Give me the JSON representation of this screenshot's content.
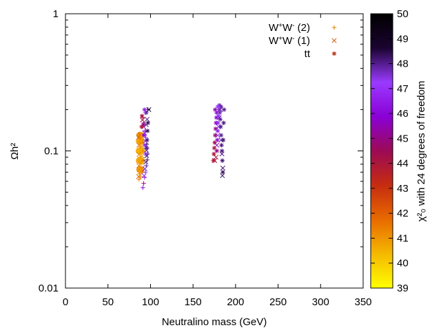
{
  "chart_data": {
    "type": "scatter",
    "title": "",
    "xlabel": "Neutralino mass (GeV)",
    "ylabel": "Ωh²",
    "colorbar_label": "χ²₀ with 24 degrees of freedom",
    "xlim": [
      0,
      350
    ],
    "ylim": [
      0.01,
      1
    ],
    "yscale": "log",
    "x_ticks": [
      0,
      50,
      100,
      150,
      200,
      250,
      300,
      350
    ],
    "y_ticks": [
      0.01,
      0.1,
      1
    ],
    "y_tick_labels": [
      "0.01",
      "0.1",
      "1"
    ],
    "colorbar_range": [
      39,
      50
    ],
    "colorbar_ticks": [
      39,
      40,
      41,
      42,
      43,
      44,
      45,
      46,
      47,
      48,
      49,
      50
    ],
    "colormap": [
      "#ffff00",
      "#f5b800",
      "#e86a00",
      "#c62c10",
      "#9c0a55",
      "#8a00d6",
      "#9a3aff",
      "#1a0430",
      "#000000"
    ],
    "legend_position": "top-right",
    "legend": [
      {
        "label_main": "W",
        "label_sup1": "+",
        "label_mid": "W",
        "label_sup2": "-",
        "label_tail": " (2)",
        "marker": "+",
        "color": "#e08000"
      },
      {
        "label_main": "W",
        "label_sup1": "+",
        "label_mid": "W",
        "label_sup2": "-",
        "label_tail": " (1)",
        "marker": "x",
        "color": "#cc5500"
      },
      {
        "label_main": "tt",
        "label_sup1": "",
        "label_mid": "",
        "label_sup2": "",
        "label_tail": "",
        "marker": "*",
        "color": "#b03010"
      }
    ],
    "series": [
      {
        "name": "W+W- (2)",
        "marker": "+",
        "points": [
          {
            "x": 86.5,
            "y": 0.062,
            "c": 41.5
          },
          {
            "x": 87.0,
            "y": 0.068,
            "c": 41.2
          },
          {
            "x": 87.2,
            "y": 0.075,
            "c": 41.0
          },
          {
            "x": 87.4,
            "y": 0.082,
            "c": 40.9
          },
          {
            "x": 87.5,
            "y": 0.09,
            "c": 40.8
          },
          {
            "x": 87.6,
            "y": 0.098,
            "c": 40.8
          },
          {
            "x": 87.5,
            "y": 0.107,
            "c": 40.9
          },
          {
            "x": 87.4,
            "y": 0.116,
            "c": 41.0
          },
          {
            "x": 87.2,
            "y": 0.125,
            "c": 41.3
          },
          {
            "x": 87.0,
            "y": 0.133,
            "c": 41.6
          },
          {
            "x": 88.5,
            "y": 0.065,
            "c": 41.2
          },
          {
            "x": 88.8,
            "y": 0.072,
            "c": 40.9
          },
          {
            "x": 89.0,
            "y": 0.08,
            "c": 40.6
          },
          {
            "x": 89.1,
            "y": 0.088,
            "c": 40.5
          },
          {
            "x": 89.2,
            "y": 0.096,
            "c": 40.4
          },
          {
            "x": 89.1,
            "y": 0.104,
            "c": 40.5
          },
          {
            "x": 89.0,
            "y": 0.113,
            "c": 40.7
          },
          {
            "x": 88.8,
            "y": 0.122,
            "c": 41.0
          },
          {
            "x": 90.5,
            "y": 0.07,
            "c": 41.8
          },
          {
            "x": 90.8,
            "y": 0.085,
            "c": 41.4
          },
          {
            "x": 90.8,
            "y": 0.1,
            "c": 41.3
          },
          {
            "x": 90.6,
            "y": 0.115,
            "c": 41.6
          },
          {
            "x": 92.0,
            "y": 0.058,
            "c": 45.0
          },
          {
            "x": 93.0,
            "y": 0.064,
            "c": 46.5
          },
          {
            "x": 94.0,
            "y": 0.07,
            "c": 47.5
          },
          {
            "x": 95.0,
            "y": 0.078,
            "c": 48.0
          },
          {
            "x": 96.0,
            "y": 0.086,
            "c": 48.3
          },
          {
            "x": 96.5,
            "y": 0.095,
            "c": 48.2
          },
          {
            "x": 96.0,
            "y": 0.105,
            "c": 47.8
          },
          {
            "x": 95.5,
            "y": 0.112,
            "c": 49.5
          },
          {
            "x": 94.5,
            "y": 0.125,
            "c": 47.0
          },
          {
            "x": 93.5,
            "y": 0.14,
            "c": 45.5
          },
          {
            "x": 92.0,
            "y": 0.16,
            "c": 44.5
          },
          {
            "x": 91.0,
            "y": 0.175,
            "c": 44.0
          },
          {
            "x": 94.0,
            "y": 0.19,
            "c": 47.5
          },
          {
            "x": 97.0,
            "y": 0.2,
            "c": 48.5
          },
          {
            "x": 91.0,
            "y": 0.054,
            "c": 46.0
          }
        ]
      },
      {
        "name": "W+W- (1)",
        "marker": "x",
        "points": [
          {
            "x": 86.0,
            "y": 0.065,
            "c": 41.8
          },
          {
            "x": 86.3,
            "y": 0.078,
            "c": 41.5
          },
          {
            "x": 86.4,
            "y": 0.094,
            "c": 41.4
          },
          {
            "x": 86.3,
            "y": 0.11,
            "c": 41.6
          },
          {
            "x": 86.0,
            "y": 0.126,
            "c": 42.0
          },
          {
            "x": 88.0,
            "y": 0.07,
            "c": 40.9
          },
          {
            "x": 88.3,
            "y": 0.085,
            "c": 40.6
          },
          {
            "x": 88.4,
            "y": 0.101,
            "c": 40.5
          },
          {
            "x": 88.2,
            "y": 0.118,
            "c": 40.8
          },
          {
            "x": 89.8,
            "y": 0.075,
            "c": 41.1
          },
          {
            "x": 90.0,
            "y": 0.092,
            "c": 40.9
          },
          {
            "x": 89.8,
            "y": 0.108,
            "c": 41.1
          },
          {
            "x": 92.5,
            "y": 0.066,
            "c": 46.8
          },
          {
            "x": 93.5,
            "y": 0.074,
            "c": 47.6
          },
          {
            "x": 94.5,
            "y": 0.083,
            "c": 48.2
          },
          {
            "x": 95.5,
            "y": 0.092,
            "c": 48.4
          },
          {
            "x": 95.2,
            "y": 0.101,
            "c": 48.0
          },
          {
            "x": 94.0,
            "y": 0.118,
            "c": 47.2
          },
          {
            "x": 93.0,
            "y": 0.135,
            "c": 46.0
          },
          {
            "x": 92.0,
            "y": 0.15,
            "c": 45.0
          },
          {
            "x": 90.5,
            "y": 0.168,
            "c": 44.2
          },
          {
            "x": 96.0,
            "y": 0.17,
            "c": 48.0
          },
          {
            "x": 98.0,
            "y": 0.2,
            "c": 48.6
          },
          {
            "x": 95.0,
            "y": 0.155,
            "c": 47.8
          },
          {
            "x": 177.0,
            "y": 0.09,
            "c": 44.0
          },
          {
            "x": 178.0,
            "y": 0.11,
            "c": 45.5
          },
          {
            "x": 179.0,
            "y": 0.13,
            "c": 47.0
          },
          {
            "x": 180.0,
            "y": 0.15,
            "c": 47.5
          },
          {
            "x": 181.0,
            "y": 0.175,
            "c": 47.8
          },
          {
            "x": 182.0,
            "y": 0.2,
            "c": 48.0
          },
          {
            "x": 183.0,
            "y": 0.12,
            "c": 47.8
          },
          {
            "x": 184.0,
            "y": 0.095,
            "c": 48.0
          },
          {
            "x": 185.0,
            "y": 0.075,
            "c": 48.2
          },
          {
            "x": 184.5,
            "y": 0.066,
            "c": 48.3
          },
          {
            "x": 175.5,
            "y": 0.085,
            "c": 44.2
          }
        ]
      },
      {
        "name": "tt",
        "marker": "*",
        "points": [
          {
            "x": 90.0,
            "y": 0.18,
            "c": 44.2
          },
          {
            "x": 91.5,
            "y": 0.155,
            "c": 45.2
          },
          {
            "x": 92.5,
            "y": 0.13,
            "c": 46.0
          },
          {
            "x": 93.5,
            "y": 0.11,
            "c": 46.8
          },
          {
            "x": 94.5,
            "y": 0.095,
            "c": 47.4
          },
          {
            "x": 95.5,
            "y": 0.105,
            "c": 47.9
          },
          {
            "x": 96.0,
            "y": 0.12,
            "c": 48.1
          },
          {
            "x": 96.5,
            "y": 0.14,
            "c": 48.3
          },
          {
            "x": 97.0,
            "y": 0.16,
            "c": 48.4
          },
          {
            "x": 95.0,
            "y": 0.19,
            "c": 47.8
          },
          {
            "x": 93.0,
            "y": 0.2,
            "c": 46.5
          },
          {
            "x": 89.5,
            "y": 0.15,
            "c": 43.8
          },
          {
            "x": 174.0,
            "y": 0.085,
            "c": 43.8
          },
          {
            "x": 174.5,
            "y": 0.095,
            "c": 44.0
          },
          {
            "x": 175.0,
            "y": 0.105,
            "c": 44.2
          },
          {
            "x": 175.5,
            "y": 0.115,
            "c": 44.5
          },
          {
            "x": 176.0,
            "y": 0.13,
            "c": 44.8
          },
          {
            "x": 176.5,
            "y": 0.145,
            "c": 45.2
          },
          {
            "x": 177.0,
            "y": 0.16,
            "c": 45.6
          },
          {
            "x": 177.5,
            "y": 0.175,
            "c": 45.9
          },
          {
            "x": 177.8,
            "y": 0.19,
            "c": 46.2
          },
          {
            "x": 178.0,
            "y": 0.1,
            "c": 45.0
          },
          {
            "x": 178.5,
            "y": 0.12,
            "c": 45.8
          },
          {
            "x": 179.0,
            "y": 0.14,
            "c": 46.5
          },
          {
            "x": 179.5,
            "y": 0.16,
            "c": 47.0
          },
          {
            "x": 180.0,
            "y": 0.18,
            "c": 47.3
          },
          {
            "x": 180.5,
            "y": 0.2,
            "c": 47.5
          },
          {
            "x": 181.0,
            "y": 0.215,
            "c": 47.7
          },
          {
            "x": 181.5,
            "y": 0.19,
            "c": 47.8
          },
          {
            "x": 182.0,
            "y": 0.17,
            "c": 47.9
          },
          {
            "x": 182.5,
            "y": 0.15,
            "c": 48.0
          },
          {
            "x": 183.0,
            "y": 0.13,
            "c": 48.0
          },
          {
            "x": 183.5,
            "y": 0.11,
            "c": 48.1
          },
          {
            "x": 184.0,
            "y": 0.1,
            "c": 48.1
          },
          {
            "x": 184.5,
            "y": 0.085,
            "c": 48.2
          },
          {
            "x": 185.0,
            "y": 0.07,
            "c": 48.3
          },
          {
            "x": 185.5,
            "y": 0.12,
            "c": 48.2
          },
          {
            "x": 186.0,
            "y": 0.16,
            "c": 48.1
          },
          {
            "x": 186.5,
            "y": 0.2,
            "c": 48.0
          },
          {
            "x": 183.0,
            "y": 0.21,
            "c": 47.9
          },
          {
            "x": 179.0,
            "y": 0.21,
            "c": 47.2
          },
          {
            "x": 176.0,
            "y": 0.2,
            "c": 45.5
          }
        ]
      },
      {
        "name": "",
        "marker": "o",
        "points": [
          {
            "x": 86.5,
            "y": 0.1,
            "c": 40.7
          },
          {
            "x": 87.5,
            "y": 0.1,
            "c": 40.5
          },
          {
            "x": 88.5,
            "y": 0.1,
            "c": 40.4
          },
          {
            "x": 89.5,
            "y": 0.1,
            "c": 40.6
          },
          {
            "x": 86.8,
            "y": 0.085,
            "c": 40.9
          },
          {
            "x": 88.0,
            "y": 0.085,
            "c": 40.6
          },
          {
            "x": 89.2,
            "y": 0.085,
            "c": 40.8
          },
          {
            "x": 86.8,
            "y": 0.118,
            "c": 40.9
          },
          {
            "x": 88.0,
            "y": 0.118,
            "c": 40.6
          },
          {
            "x": 89.2,
            "y": 0.118,
            "c": 40.8
          },
          {
            "x": 87.3,
            "y": 0.073,
            "c": 41.2
          },
          {
            "x": 88.6,
            "y": 0.073,
            "c": 41.0
          },
          {
            "x": 87.3,
            "y": 0.13,
            "c": 41.2
          },
          {
            "x": 88.6,
            "y": 0.13,
            "c": 41.0
          }
        ]
      }
    ]
  }
}
